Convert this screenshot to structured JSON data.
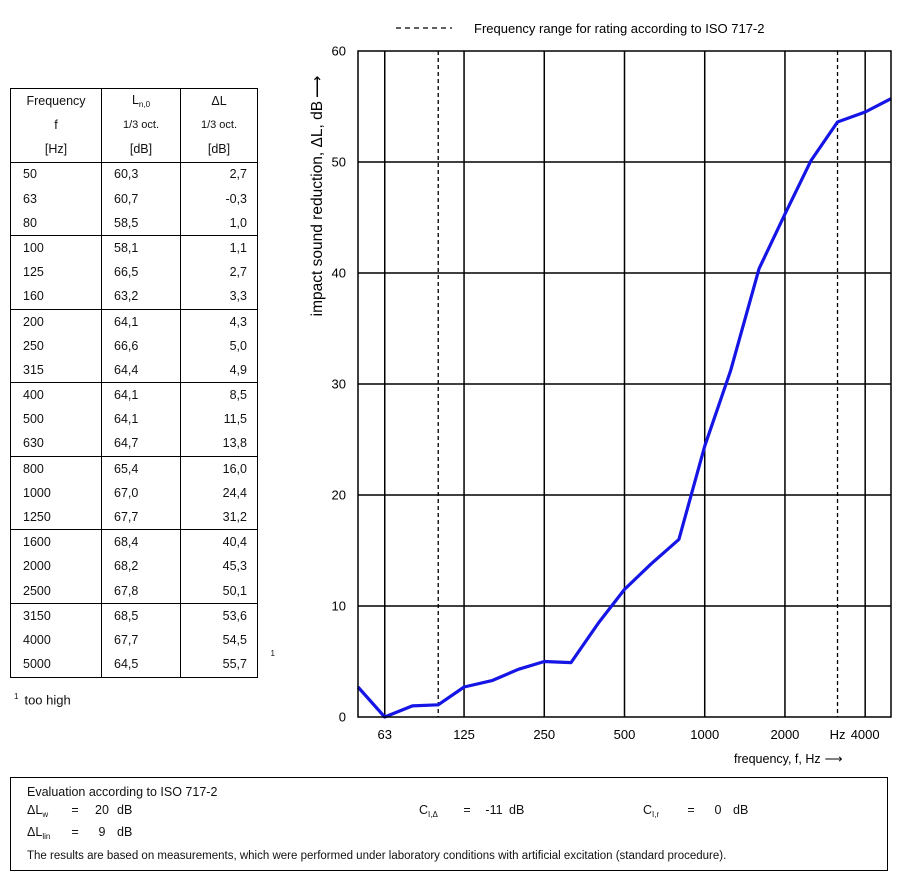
{
  "table": {
    "headers": [
      {
        "line1_main": "Frequency",
        "line1_sub": "",
        "line2": "f",
        "line3": "[Hz]"
      },
      {
        "line1_main": "L",
        "line1_sub": "n,0",
        "line2": "1/3 oct.",
        "line3": "[dB]"
      },
      {
        "line1_main": "ΔL",
        "line1_sub": "",
        "line2": "1/3 oct.",
        "line3": "[dB]"
      }
    ],
    "rows": [
      [
        "50",
        "60,3",
        "2,7"
      ],
      [
        "63",
        "60,7",
        "-0,3"
      ],
      [
        "80",
        "58,5",
        "1,0"
      ],
      [
        "100",
        "58,1",
        "1,1"
      ],
      [
        "125",
        "66,5",
        "2,7"
      ],
      [
        "160",
        "63,2",
        "3,3"
      ],
      [
        "200",
        "64,1",
        "4,3"
      ],
      [
        "250",
        "66,6",
        "5,0"
      ],
      [
        "315",
        "64,4",
        "4,9"
      ],
      [
        "400",
        "64,1",
        "8,5"
      ],
      [
        "500",
        "64,1",
        "11,5"
      ],
      [
        "630",
        "64,7",
        "13,8"
      ],
      [
        "800",
        "65,4",
        "16,0"
      ],
      [
        "1000",
        "67,0",
        "24,4"
      ],
      [
        "1250",
        "67,7",
        "31,2"
      ],
      [
        "1600",
        "68,4",
        "40,4"
      ],
      [
        "2000",
        "68,2",
        "45,3"
      ],
      [
        "2500",
        "67,8",
        "50,1"
      ],
      [
        "3150",
        "68,5",
        "53,6"
      ],
      [
        "4000",
        "67,7",
        "54,5"
      ],
      [
        "5000",
        "64,5",
        "55,7"
      ]
    ],
    "footnote_mark": "1",
    "footnote_text": "too high"
  },
  "chart_data": {
    "type": "line",
    "legend_label": "Frequency range for rating according to ISO 717-2",
    "ylabel": "impact sound reduction,  ΔL, dB",
    "ylabel_arrow": "⟶",
    "xlabel": "frequency, f, Hz",
    "xlabel_arrow": "⟶",
    "ylim": [
      0,
      60
    ],
    "yticks": [
      0,
      10,
      20,
      30,
      40,
      50,
      60
    ],
    "x_scale": "log (one-third octave bands)",
    "xlim_bands": [
      "50",
      "5000"
    ],
    "xtick_labels": [
      "63",
      "125",
      "250",
      "500",
      "1000",
      "2000",
      "Hz",
      "4000"
    ],
    "xtick_freqs": [
      63,
      125,
      250,
      500,
      1000,
      2000,
      3150,
      4000
    ],
    "grid_freqs": [
      63,
      125,
      250,
      500,
      1000,
      2000,
      4000
    ],
    "rating_range_freqs": [
      100,
      3150
    ],
    "grid": true,
    "series": [
      {
        "color": "#1515e6",
        "x": [
          50,
          63,
          80,
          100,
          125,
          160,
          200,
          250,
          315,
          400,
          500,
          630,
          800,
          1000,
          1250,
          1600,
          2000,
          2500,
          3150,
          4000,
          5000
        ],
        "y": [
          2.7,
          -0.3,
          1.0,
          1.1,
          2.7,
          3.3,
          4.3,
          5.0,
          4.9,
          8.5,
          11.5,
          13.8,
          16.0,
          24.4,
          31.2,
          40.4,
          45.3,
          50.1,
          53.6,
          54.5,
          55.7
        ]
      }
    ]
  },
  "evaluation": {
    "title": "Evaluation according to ISO 717-2",
    "dlw_main": "ΔL",
    "dlw_sub": "w",
    "dlw_eq": "=",
    "dlw_value": "20",
    "dlw_unit": "dB",
    "dllin_main": "ΔL",
    "dllin_sub": "lin",
    "dllin_eq": "=",
    "dllin_value": "9",
    "dllin_unit": "dB",
    "ci_delta_main": "C",
    "ci_delta_sub": "I,Δ",
    "ci_delta_eq": "=",
    "ci_delta_value": "-11",
    "ci_delta_unit": "dB",
    "ci_r_main": "C",
    "ci_r_sub": "I,r",
    "ci_r_eq": "=",
    "ci_r_value": "0",
    "ci_r_unit": "dB",
    "note": "The results are based on measurements, which were performed under laboratory conditions with artificial excitation (standard procedure)."
  }
}
